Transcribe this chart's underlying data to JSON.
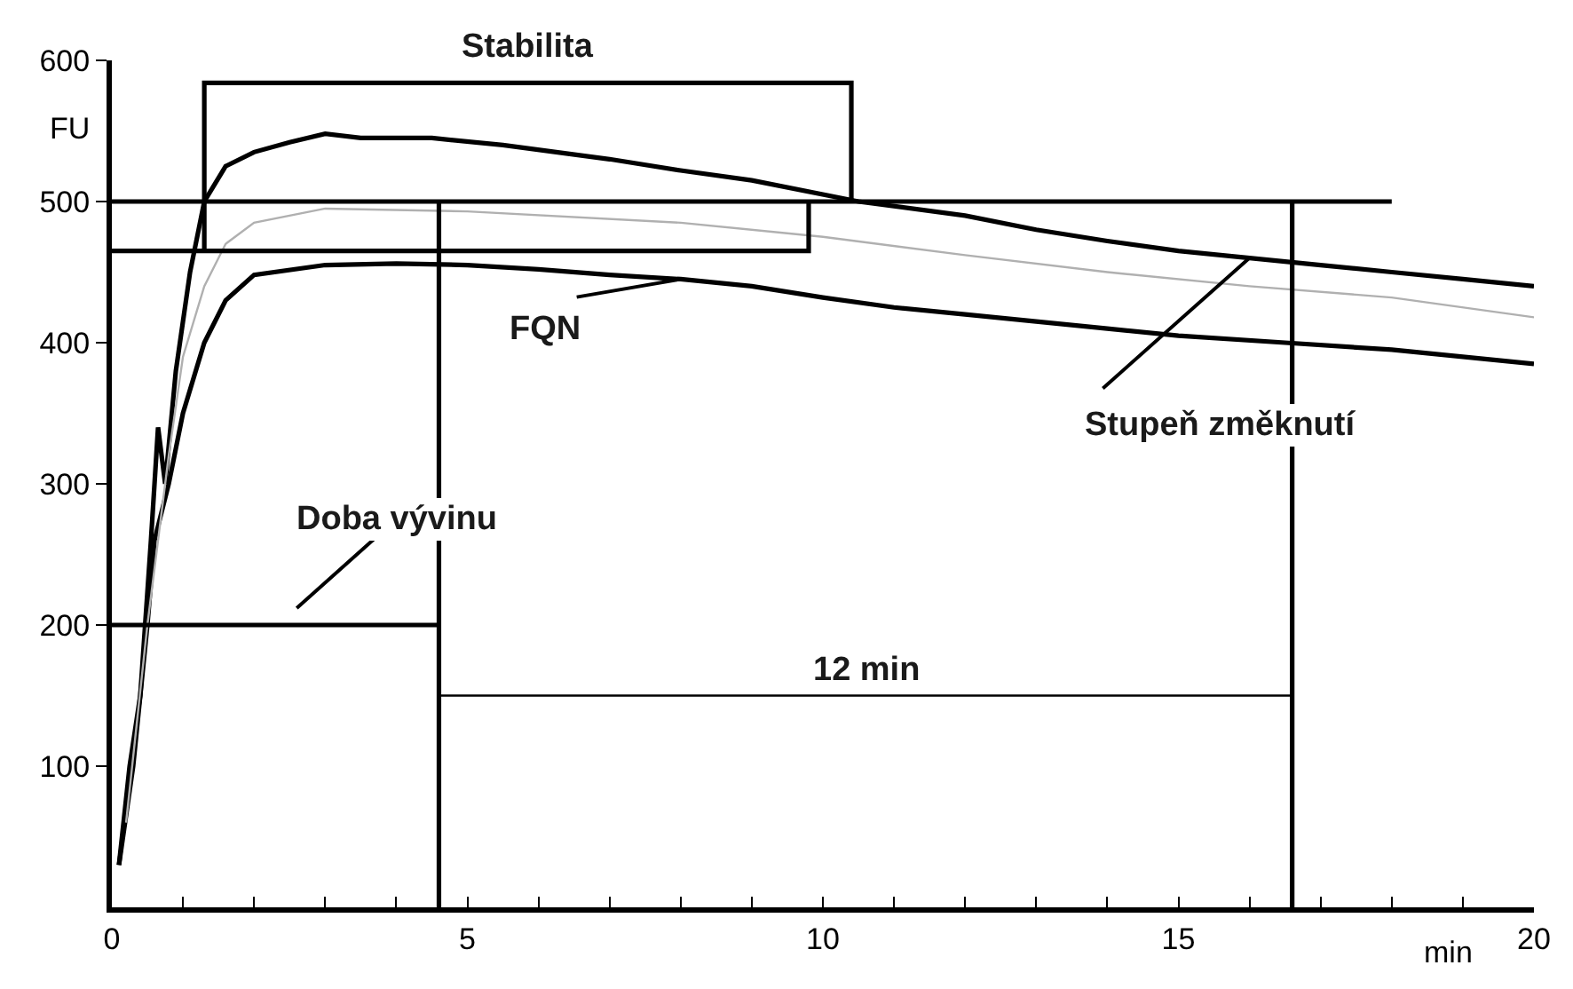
{
  "chart_data": {
    "type": "line",
    "xlabel": "min",
    "ylabel": "FU",
    "xlim": [
      0,
      20
    ],
    "ylim": [
      0,
      600
    ],
    "xticks": [
      0,
      {
        "value": 1,
        "label": null
      },
      {
        "value": 2,
        "label": null
      },
      {
        "value": 3,
        "label": null
      },
      {
        "value": 4,
        "label": null
      },
      5,
      {
        "value": 6,
        "label": null
      },
      {
        "value": 7,
        "label": null
      },
      {
        "value": 8,
        "label": null
      },
      {
        "value": 9,
        "label": null
      },
      10,
      {
        "value": 11,
        "label": null
      },
      {
        "value": 12,
        "label": null
      },
      {
        "value": 13,
        "label": null
      },
      {
        "value": 14,
        "label": null
      },
      15,
      {
        "value": 16,
        "label": null
      },
      {
        "value": 17,
        "label": null
      },
      {
        "value": 18,
        "label": null
      },
      {
        "value": 19,
        "label": null
      },
      20
    ],
    "yticks": [
      100,
      200,
      300,
      400,
      500,
      600
    ],
    "marker": "none",
    "series": [
      {
        "color": "#000000",
        "x": [
          0.1,
          0.25,
          0.4,
          0.55,
          0.65,
          0.75,
          0.9,
          1.1,
          1.3,
          1.6,
          2,
          2.5,
          3,
          3.5,
          4.5,
          5.5,
          7,
          8,
          9,
          10.5,
          12,
          13,
          14,
          15,
          16,
          17,
          18,
          19,
          20
        ],
        "values": [
          30,
          100,
          150,
          260,
          340,
          300,
          380,
          450,
          500,
          525,
          535,
          542,
          548,
          545,
          545,
          540,
          530,
          522,
          515,
          500,
          490,
          480,
          472,
          465,
          460,
          455,
          450,
          445,
          440
        ]
      },
      {
        "color": "#000000",
        "x": [
          0.1,
          0.3,
          0.5,
          0.6,
          0.8,
          1.0,
          1.3,
          1.6,
          2,
          3,
          4,
          5,
          6,
          7,
          8,
          9,
          10,
          11,
          12,
          13,
          14,
          15,
          16.5,
          18,
          19,
          20
        ],
        "values": [
          30,
          100,
          200,
          260,
          300,
          350,
          400,
          430,
          448,
          455,
          456,
          455,
          452,
          448,
          445,
          440,
          432,
          425,
          420,
          415,
          410,
          405,
          400,
          395,
          390,
          385
        ]
      },
      {
        "color": "#b0b0b0",
        "x": [
          0.2,
          0.5,
          0.8,
          1.0,
          1.3,
          1.6,
          2,
          3,
          5,
          8,
          10,
          12,
          14,
          16,
          18,
          20
        ],
        "values": [
          60,
          200,
          320,
          390,
          440,
          470,
          485,
          495,
          493,
          485,
          475,
          462,
          450,
          440,
          432,
          418
        ]
      },
      {
        "color": "#000000",
        "x": [
          1.3,
          1.3,
          10.4,
          10.4
        ],
        "values": [
          465,
          584,
          584,
          500
        ]
      },
      {
        "color": "#000000",
        "x": [
          0,
          18
        ],
        "values": [
          500,
          500
        ]
      },
      {
        "color": "#000000",
        "x": [
          0,
          9.8,
          9.8
        ],
        "values": [
          465,
          465,
          500
        ]
      },
      {
        "color": "#000000",
        "x": [
          4.6,
          4.6
        ],
        "values": [
          0,
          500
        ]
      },
      {
        "color": "#000000",
        "x": [
          16.6,
          16.6
        ],
        "values": [
          0,
          500
        ]
      },
      {
        "color": "#000000",
        "x": [
          0,
          4.6
        ],
        "values": [
          200,
          200
        ]
      },
      {
        "color": "#000000",
        "x": [
          4.6,
          16.6
        ],
        "values": [
          150,
          150
        ]
      }
    ],
    "annotations": [
      {
        "text": "Stabilita",
        "x": 5.85,
        "y": 584
      },
      {
        "text": "FQN",
        "x": 8,
        "y": 445
      },
      "Doba vývinu",
      {
        "text": "Stupeň změknutí",
        "x": 16,
        "y": 460
      },
      {
        "text": "12 min",
        "x": 10.6,
        "y": 150
      }
    ]
  }
}
